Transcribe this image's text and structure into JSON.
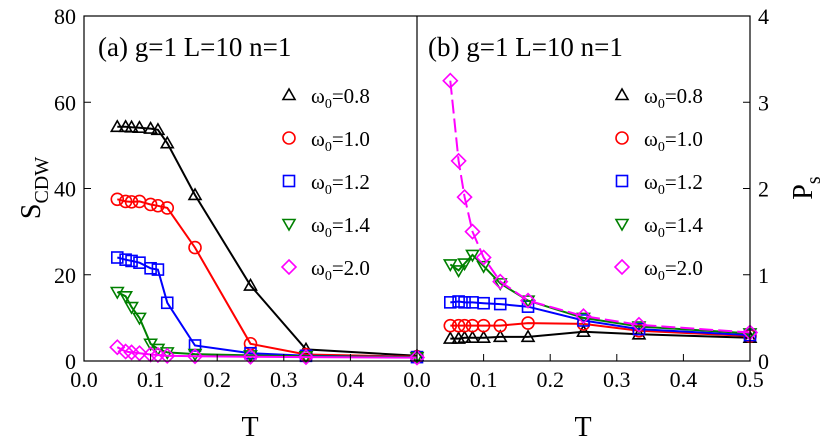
{
  "chart_data": [
    {
      "type": "line",
      "panel": "a",
      "title": "(a) g=1 L=10 n=1",
      "xlabel": "T",
      "ylabel": "S",
      "ylabel_sub": "CDW",
      "xlim": [
        0.0,
        0.5
      ],
      "ylim": [
        0,
        80
      ],
      "xticks": [
        "0.0",
        "0.1",
        "0.2",
        "0.3",
        "0.4"
      ],
      "yticks": [
        "0",
        "20",
        "40",
        "60",
        "80"
      ],
      "legend_position": "right",
      "series": [
        {
          "name": "ω0=0.8",
          "label_main": "ω",
          "label_sub": "0",
          "label_tail": "=0.8",
          "color": "#000000",
          "marker": "triangle-up",
          "x": [
            0.05,
            0.0625,
            0.0714,
            0.0833,
            0.1,
            0.111,
            0.125,
            0.1667,
            0.25,
            0.3333,
            0.5
          ],
          "y": [
            54.3,
            54.3,
            54.2,
            54.1,
            53.9,
            53.6,
            50.5,
            38.5,
            17.5,
            2.7,
            1.2
          ]
        },
        {
          "name": "ω0=1.0",
          "label_main": "ω",
          "label_sub": "0",
          "label_tail": "=1.0",
          "color": "#ff0000",
          "marker": "circle",
          "x": [
            0.05,
            0.0625,
            0.0714,
            0.0833,
            0.1,
            0.111,
            0.125,
            0.1667,
            0.25,
            0.3333,
            0.5
          ],
          "y": [
            37.5,
            37.0,
            36.9,
            37.0,
            36.3,
            36.0,
            35.5,
            26.3,
            4.0,
            1.5,
            1.0
          ]
        },
        {
          "name": "ω0=1.2",
          "label_main": "ω",
          "label_sub": "0",
          "label_tail": "=1.2",
          "color": "#0000ff",
          "marker": "square",
          "x": [
            0.05,
            0.0625,
            0.0714,
            0.0833,
            0.1,
            0.111,
            0.125,
            0.1667,
            0.25,
            0.3333,
            0.5
          ],
          "y": [
            24.0,
            23.5,
            23.2,
            22.8,
            21.5,
            21.2,
            13.5,
            3.6,
            1.8,
            1.2,
            0.9
          ]
        },
        {
          "name": "ω0=1.4",
          "label_main": "ω",
          "label_sub": "0",
          "label_tail": "=1.4",
          "color": "#008000",
          "marker": "triangle-down",
          "x": [
            0.05,
            0.0625,
            0.0714,
            0.0833,
            0.1,
            0.111,
            0.125,
            0.1667,
            0.25,
            0.3333,
            0.5
          ],
          "y": [
            16.0,
            15.0,
            12.5,
            10.0,
            4.0,
            2.8,
            2.0,
            1.6,
            1.3,
            1.1,
            0.9
          ]
        },
        {
          "name": "ω0=2.0",
          "label_main": "ω",
          "label_sub": "0",
          "label_tail": "=2.0",
          "color": "#ff00ff",
          "marker": "diamond",
          "x": [
            0.05,
            0.0625,
            0.0714,
            0.0833,
            0.1,
            0.111,
            0.125,
            0.1667,
            0.25,
            0.3333,
            0.5
          ],
          "y": [
            3.2,
            2.2,
            2.0,
            1.8,
            1.5,
            1.4,
            1.2,
            1.1,
            1.0,
            0.9,
            0.8
          ]
        }
      ]
    },
    {
      "type": "line",
      "panel": "b",
      "title": "(b) g=1 L=10 n=1",
      "xlabel": "T",
      "ylabel": "P",
      "ylabel_sub": "s",
      "xlim": [
        0.0,
        0.5
      ],
      "ylim": [
        0,
        4
      ],
      "xticks": [
        "0.0",
        "0.1",
        "0.2",
        "0.3",
        "0.4",
        "0.5"
      ],
      "yticks": [
        "0",
        "1",
        "2",
        "3",
        "4"
      ],
      "legend_position": "right",
      "series": [
        {
          "name": "ω0=0.8",
          "label_main": "ω",
          "label_sub": "0",
          "label_tail": "=0.8",
          "color": "#000000",
          "marker": "triangle-up",
          "x": [
            0.05,
            0.0625,
            0.0714,
            0.0833,
            0.1,
            0.125,
            0.1667,
            0.25,
            0.3333,
            0.5
          ],
          "y": [
            0.26,
            0.26,
            0.27,
            0.27,
            0.27,
            0.28,
            0.28,
            0.34,
            0.31,
            0.27
          ]
        },
        {
          "name": "ω0=1.0",
          "label_main": "ω",
          "label_sub": "0",
          "label_tail": "=1.0",
          "color": "#ff0000",
          "marker": "circle",
          "x": [
            0.05,
            0.0625,
            0.0714,
            0.0833,
            0.1,
            0.125,
            0.1667,
            0.25,
            0.3333,
            0.5
          ],
          "y": [
            0.41,
            0.41,
            0.41,
            0.41,
            0.41,
            0.41,
            0.44,
            0.43,
            0.35,
            0.29
          ]
        },
        {
          "name": "ω0=1.2",
          "label_main": "ω",
          "label_sub": "0",
          "label_tail": "=1.2",
          "color": "#0000ff",
          "marker": "square",
          "x": [
            0.05,
            0.0625,
            0.0714,
            0.0833,
            0.1,
            0.125,
            0.1667,
            0.25,
            0.3333,
            0.5
          ],
          "y": [
            0.68,
            0.69,
            0.68,
            0.68,
            0.67,
            0.66,
            0.63,
            0.47,
            0.37,
            0.3
          ]
        },
        {
          "name": "ω0=1.4",
          "label_main": "ω",
          "label_sub": "0",
          "label_tail": "=1.4",
          "color": "#008000",
          "marker": "triangle-down",
          "x": [
            0.05,
            0.0625,
            0.0714,
            0.0833,
            0.1,
            0.125,
            0.1667,
            0.25,
            0.3333,
            0.5
          ],
          "y": [
            1.12,
            1.05,
            1.13,
            1.23,
            1.1,
            0.9,
            0.7,
            0.5,
            0.4,
            0.32
          ]
        },
        {
          "name": "ω0=2.0",
          "label_main": "ω",
          "label_sub": "0",
          "label_tail": "=2.0",
          "color": "#ff00ff",
          "marker": "diamond",
          "x": [
            0.05,
            0.0625,
            0.0714,
            0.0833,
            0.1,
            0.125,
            0.1667,
            0.25,
            0.3333,
            0.5
          ],
          "y": [
            3.25,
            2.32,
            1.9,
            1.5,
            1.2,
            0.92,
            0.7,
            0.52,
            0.42,
            0.33
          ]
        }
      ]
    }
  ]
}
